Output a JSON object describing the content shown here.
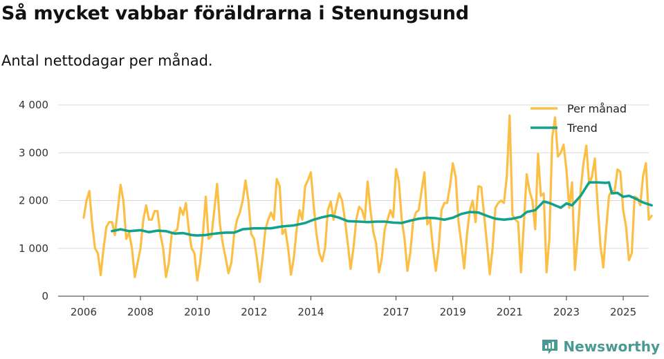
{
  "header": {
    "title": "Så mycket vabbar föräldrarna i Stenungsund",
    "subtitle": "Antal nettodagar per månad."
  },
  "brand": {
    "name": "Newsworthy"
  },
  "colors": {
    "per_manad": "#fbbf45",
    "trend": "#12a18c",
    "grid": "#d9d9d9",
    "axis": "#333333",
    "brand": "#4a9a93"
  },
  "chart_data": {
    "type": "line",
    "title": "Så mycket vabbar föräldrarna i Stenungsund",
    "subtitle": "Antal nettodagar per månad.",
    "xlabel": "",
    "ylabel": "",
    "ylim": [
      0,
      4000
    ],
    "xlim": [
      2005.1,
      2025.9
    ],
    "yticks": [
      {
        "value": 0,
        "label": "0"
      },
      {
        "value": 1000,
        "label": "1 000"
      },
      {
        "value": 2000,
        "label": "2 000"
      },
      {
        "value": 3000,
        "label": "3 000"
      },
      {
        "value": 4000,
        "label": "4 000"
      }
    ],
    "xticks": [
      {
        "value": 2006,
        "label": "2006"
      },
      {
        "value": 2008,
        "label": "2008"
      },
      {
        "value": 2010,
        "label": "2010"
      },
      {
        "value": 2012,
        "label": "2012"
      },
      {
        "value": 2014,
        "label": "2014"
      },
      {
        "value": 2017,
        "label": "2017"
      },
      {
        "value": 2019,
        "label": "2019"
      },
      {
        "value": 2021,
        "label": "2021"
      },
      {
        "value": 2023,
        "label": "2023"
      },
      {
        "value": 2025,
        "label": "2025"
      }
    ],
    "legend_position": "top-right",
    "series": [
      {
        "name": "Per månad",
        "color": "#fbbf45",
        "points": [
          [
            2006.0,
            1640
          ],
          [
            2006.1,
            2000
          ],
          [
            2006.2,
            2200
          ],
          [
            2006.3,
            1500
          ],
          [
            2006.4,
            1000
          ],
          [
            2006.5,
            900
          ],
          [
            2006.6,
            440
          ],
          [
            2006.7,
            1000
          ],
          [
            2006.8,
            1450
          ],
          [
            2006.9,
            1550
          ],
          [
            2007.0,
            1550
          ],
          [
            2007.1,
            1280
          ],
          [
            2007.2,
            1800
          ],
          [
            2007.3,
            2330
          ],
          [
            2007.4,
            2000
          ],
          [
            2007.5,
            1200
          ],
          [
            2007.6,
            1330
          ],
          [
            2007.7,
            1000
          ],
          [
            2007.8,
            400
          ],
          [
            2007.9,
            700
          ],
          [
            2008.0,
            1000
          ],
          [
            2008.1,
            1600
          ],
          [
            2008.2,
            1900
          ],
          [
            2008.3,
            1600
          ],
          [
            2008.4,
            1600
          ],
          [
            2008.5,
            1780
          ],
          [
            2008.6,
            1780
          ],
          [
            2008.7,
            1300
          ],
          [
            2008.8,
            1000
          ],
          [
            2008.9,
            400
          ],
          [
            2009.0,
            700
          ],
          [
            2009.1,
            1300
          ],
          [
            2009.2,
            1350
          ],
          [
            2009.3,
            1400
          ],
          [
            2009.4,
            1850
          ],
          [
            2009.5,
            1700
          ],
          [
            2009.6,
            1950
          ],
          [
            2009.7,
            1400
          ],
          [
            2009.8,
            1000
          ],
          [
            2009.9,
            900
          ],
          [
            2010.0,
            330
          ],
          [
            2010.1,
            700
          ],
          [
            2010.2,
            1300
          ],
          [
            2010.3,
            2080
          ],
          [
            2010.4,
            1200
          ],
          [
            2010.5,
            1250
          ],
          [
            2010.6,
            1800
          ],
          [
            2010.7,
            2350
          ],
          [
            2010.8,
            1500
          ],
          [
            2010.9,
            1100
          ],
          [
            2011.0,
            800
          ],
          [
            2011.1,
            480
          ],
          [
            2011.2,
            700
          ],
          [
            2011.3,
            1300
          ],
          [
            2011.4,
            1600
          ],
          [
            2011.5,
            1750
          ],
          [
            2011.6,
            2000
          ],
          [
            2011.7,
            2420
          ],
          [
            2011.8,
            2000
          ],
          [
            2011.9,
            1300
          ],
          [
            2012.0,
            1200
          ],
          [
            2012.1,
            800
          ],
          [
            2012.2,
            300
          ],
          [
            2012.3,
            800
          ],
          [
            2012.4,
            1400
          ],
          [
            2012.5,
            1600
          ],
          [
            2012.6,
            1750
          ],
          [
            2012.7,
            1600
          ],
          [
            2012.8,
            2450
          ],
          [
            2012.9,
            2300
          ],
          [
            2013.0,
            1300
          ],
          [
            2013.1,
            1400
          ],
          [
            2013.2,
            1000
          ],
          [
            2013.3,
            450
          ],
          [
            2013.4,
            800
          ],
          [
            2013.5,
            1400
          ],
          [
            2013.6,
            1800
          ],
          [
            2013.7,
            1600
          ],
          [
            2013.8,
            2300
          ],
          [
            2013.9,
            2430
          ],
          [
            2014.0,
            2590
          ],
          [
            2014.1,
            1900
          ],
          [
            2014.2,
            1300
          ],
          [
            2014.3,
            900
          ],
          [
            2014.4,
            730
          ],
          [
            2014.5,
            1000
          ],
          [
            2014.6,
            1800
          ],
          [
            2014.7,
            1980
          ],
          [
            2014.8,
            1600
          ],
          [
            2014.9,
            1900
          ],
          [
            2015.0,
            2150
          ],
          [
            2015.1,
            2000
          ],
          [
            2015.2,
            1600
          ],
          [
            2015.3,
            1100
          ],
          [
            2015.4,
            570
          ],
          [
            2015.5,
            1000
          ],
          [
            2015.6,
            1600
          ],
          [
            2015.7,
            1870
          ],
          [
            2015.8,
            1800
          ],
          [
            2015.9,
            1600
          ],
          [
            2016.0,
            2400
          ],
          [
            2016.1,
            1800
          ],
          [
            2016.2,
            1350
          ],
          [
            2016.3,
            1100
          ],
          [
            2016.4,
            500
          ],
          [
            2016.5,
            800
          ],
          [
            2016.6,
            1400
          ],
          [
            2016.7,
            1600
          ],
          [
            2016.8,
            1800
          ],
          [
            2016.9,
            1650
          ],
          [
            2017.0,
            2660
          ],
          [
            2017.1,
            2400
          ],
          [
            2017.2,
            1600
          ],
          [
            2017.3,
            1200
          ],
          [
            2017.4,
            530
          ],
          [
            2017.5,
            900
          ],
          [
            2017.6,
            1550
          ],
          [
            2017.7,
            1750
          ],
          [
            2017.8,
            1800
          ],
          [
            2017.9,
            2200
          ],
          [
            2018.0,
            2590
          ],
          [
            2018.1,
            1500
          ],
          [
            2018.2,
            1600
          ],
          [
            2018.3,
            1000
          ],
          [
            2018.4,
            530
          ],
          [
            2018.5,
            1000
          ],
          [
            2018.6,
            1800
          ],
          [
            2018.7,
            1950
          ],
          [
            2018.8,
            1950
          ],
          [
            2018.9,
            2300
          ],
          [
            2019.0,
            2780
          ],
          [
            2019.1,
            2500
          ],
          [
            2019.2,
            1550
          ],
          [
            2019.3,
            1100
          ],
          [
            2019.4,
            580
          ],
          [
            2019.5,
            1300
          ],
          [
            2019.6,
            1800
          ],
          [
            2019.7,
            2000
          ],
          [
            2019.8,
            1550
          ],
          [
            2019.9,
            2300
          ],
          [
            2020.0,
            2280
          ],
          [
            2020.1,
            1700
          ],
          [
            2020.2,
            1100
          ],
          [
            2020.3,
            460
          ],
          [
            2020.4,
            1000
          ],
          [
            2020.5,
            1850
          ],
          [
            2020.6,
            1950
          ],
          [
            2020.7,
            2000
          ],
          [
            2020.8,
            1950
          ],
          [
            2020.9,
            2500
          ],
          [
            2021.0,
            3780
          ],
          [
            2021.1,
            1700
          ],
          [
            2021.2,
            1600
          ],
          [
            2021.3,
            1550
          ],
          [
            2021.4,
            500
          ],
          [
            2021.5,
            1500
          ],
          [
            2021.6,
            2550
          ],
          [
            2021.7,
            2200
          ],
          [
            2021.8,
            2000
          ],
          [
            2021.9,
            1400
          ],
          [
            2022.0,
            2980
          ],
          [
            2022.1,
            2100
          ],
          [
            2022.2,
            2150
          ],
          [
            2022.3,
            500
          ],
          [
            2022.4,
            1200
          ],
          [
            2022.5,
            3320
          ],
          [
            2022.6,
            3740
          ],
          [
            2022.7,
            2920
          ],
          [
            2022.8,
            3000
          ],
          [
            2022.9,
            3170
          ],
          [
            2023.0,
            2650
          ],
          [
            2023.1,
            1850
          ],
          [
            2023.2,
            2380
          ],
          [
            2023.3,
            550
          ],
          [
            2023.4,
            1300
          ],
          [
            2023.5,
            2230
          ],
          [
            2023.6,
            2780
          ],
          [
            2023.7,
            3150
          ],
          [
            2023.8,
            2350
          ],
          [
            2023.9,
            2500
          ],
          [
            2024.0,
            2880
          ],
          [
            2024.1,
            1900
          ],
          [
            2024.2,
            1050
          ],
          [
            2024.3,
            600
          ],
          [
            2024.4,
            1400
          ],
          [
            2024.5,
            2100
          ],
          [
            2024.6,
            2200
          ],
          [
            2024.7,
            2200
          ],
          [
            2024.8,
            2650
          ],
          [
            2024.9,
            2600
          ],
          [
            2025.0,
            1800
          ],
          [
            2025.1,
            1450
          ],
          [
            2025.2,
            750
          ],
          [
            2025.3,
            900
          ],
          [
            2025.4,
            2080
          ],
          [
            2025.5,
            2050
          ],
          [
            2025.6,
            1900
          ],
          [
            2025.7,
            2520
          ],
          [
            2025.8,
            2780
          ],
          [
            2025.9,
            1600
          ],
          [
            2026.0,
            1680
          ]
        ]
      },
      {
        "name": "Trend",
        "color": "#12a18c",
        "points": [
          [
            2007.0,
            1360
          ],
          [
            2007.3,
            1400
          ],
          [
            2007.6,
            1360
          ],
          [
            2008.0,
            1380
          ],
          [
            2008.3,
            1340
          ],
          [
            2008.6,
            1370
          ],
          [
            2008.9,
            1360
          ],
          [
            2009.2,
            1310
          ],
          [
            2009.5,
            1320
          ],
          [
            2009.8,
            1280
          ],
          [
            2010.0,
            1270
          ],
          [
            2010.3,
            1280
          ],
          [
            2010.5,
            1300
          ],
          [
            2010.8,
            1320
          ],
          [
            2011.0,
            1330
          ],
          [
            2011.3,
            1330
          ],
          [
            2011.6,
            1400
          ],
          [
            2012.0,
            1420
          ],
          [
            2012.3,
            1420
          ],
          [
            2012.6,
            1420
          ],
          [
            2013.0,
            1460
          ],
          [
            2013.4,
            1480
          ],
          [
            2013.8,
            1530
          ],
          [
            2014.1,
            1600
          ],
          [
            2014.4,
            1650
          ],
          [
            2014.7,
            1690
          ],
          [
            2015.0,
            1640
          ],
          [
            2015.3,
            1570
          ],
          [
            2015.7,
            1560
          ],
          [
            2016.0,
            1550
          ],
          [
            2016.3,
            1560
          ],
          [
            2016.6,
            1560
          ],
          [
            2016.9,
            1540
          ],
          [
            2017.2,
            1530
          ],
          [
            2017.5,
            1580
          ],
          [
            2017.8,
            1620
          ],
          [
            2018.1,
            1640
          ],
          [
            2018.4,
            1630
          ],
          [
            2018.7,
            1600
          ],
          [
            2019.0,
            1640
          ],
          [
            2019.3,
            1720
          ],
          [
            2019.6,
            1760
          ],
          [
            2019.9,
            1750
          ],
          [
            2020.2,
            1680
          ],
          [
            2020.5,
            1620
          ],
          [
            2020.8,
            1600
          ],
          [
            2021.1,
            1620
          ],
          [
            2021.4,
            1660
          ],
          [
            2021.6,
            1760
          ],
          [
            2021.9,
            1800
          ],
          [
            2022.2,
            1980
          ],
          [
            2022.4,
            1950
          ],
          [
            2022.6,
            1900
          ],
          [
            2022.8,
            1850
          ],
          [
            2023.0,
            1940
          ],
          [
            2023.2,
            1900
          ],
          [
            2023.5,
            2100
          ],
          [
            2023.8,
            2380
          ],
          [
            2024.1,
            2380
          ],
          [
            2024.4,
            2370
          ],
          [
            2024.5,
            2380
          ],
          [
            2024.6,
            2150
          ],
          [
            2024.8,
            2160
          ],
          [
            2025.0,
            2080
          ],
          [
            2025.2,
            2100
          ],
          [
            2025.4,
            2050
          ],
          [
            2025.7,
            1960
          ],
          [
            2026.0,
            1900
          ]
        ]
      }
    ]
  }
}
